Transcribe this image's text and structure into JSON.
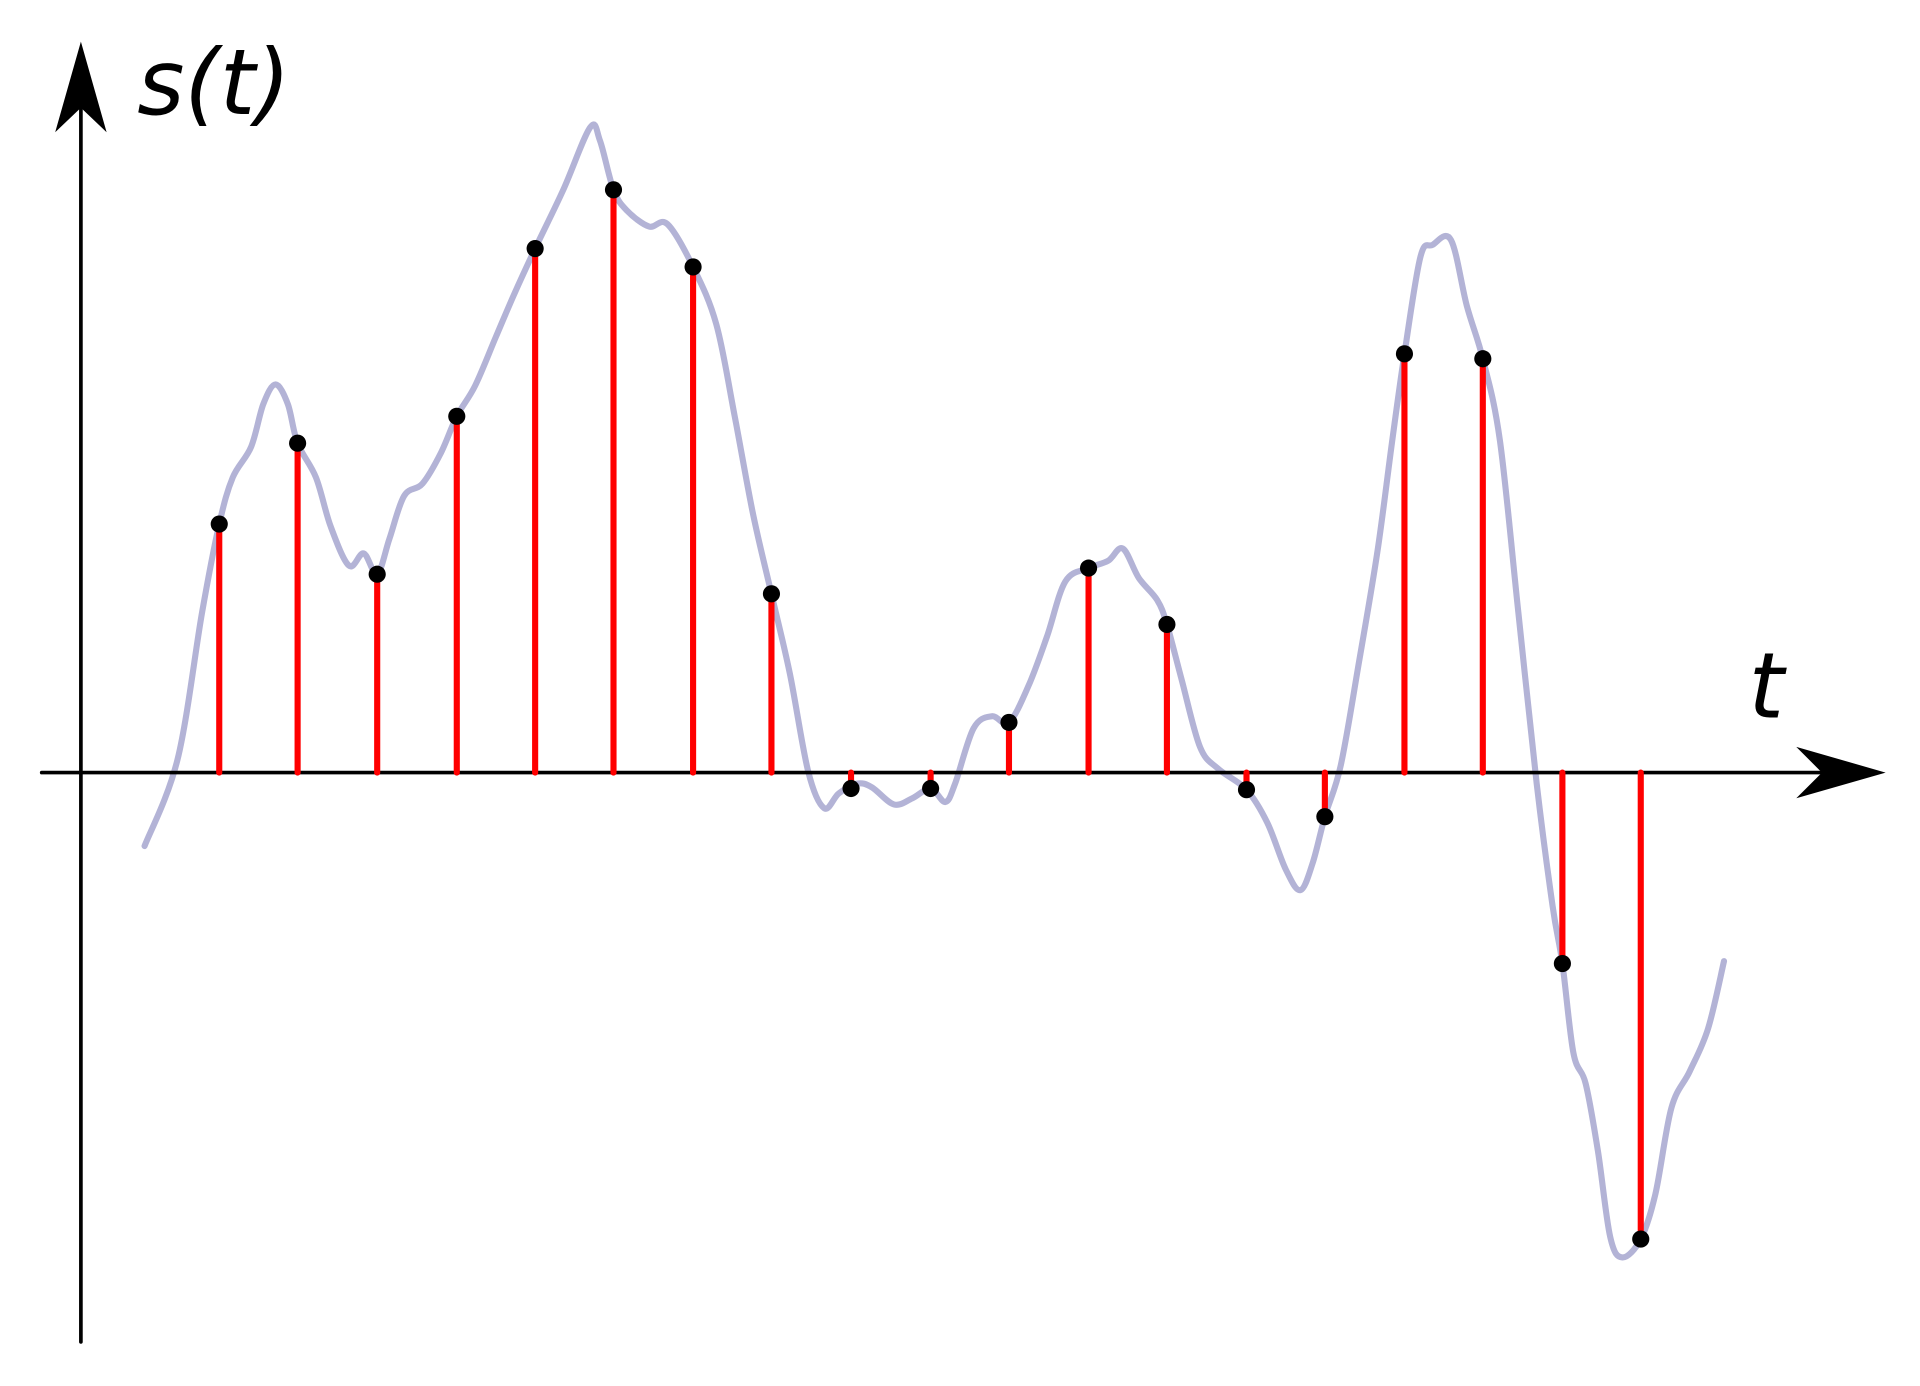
{
  "labels": {
    "y_axis": "s(t)",
    "x_axis": "t"
  },
  "colors": {
    "signal": "#b3b3d6",
    "stems": "#ff0000",
    "samples": "#000000",
    "axes": "#000000"
  },
  "chart_data": {
    "type": "stem",
    "grid": false,
    "signal": [
      [
        0.52,
        -0.6
      ],
      [
        0.79,
        0.11
      ],
      [
        0.99,
        1.31
      ],
      [
        1.13,
        2.03
      ],
      [
        1.24,
        2.41
      ],
      [
        1.39,
        2.66
      ],
      [
        1.49,
        3.01
      ],
      [
        1.59,
        3.17
      ],
      [
        1.69,
        3.01
      ],
      [
        1.77,
        2.69
      ],
      [
        1.92,
        2.41
      ],
      [
        2.04,
        2.01
      ],
      [
        2.19,
        1.69
      ],
      [
        2.31,
        1.79
      ],
      [
        2.42,
        1.62
      ],
      [
        2.52,
        1.91
      ],
      [
        2.64,
        2.26
      ],
      [
        2.79,
        2.36
      ],
      [
        2.94,
        2.61
      ],
      [
        3.07,
        2.91
      ],
      [
        3.22,
        3.16
      ],
      [
        3.39,
        3.56
      ],
      [
        3.54,
        3.91
      ],
      [
        3.71,
        4.28
      ],
      [
        3.94,
        4.76
      ],
      [
        4.16,
        5.27
      ],
      [
        4.24,
        5.16
      ],
      [
        4.35,
        4.76
      ],
      [
        4.46,
        4.59
      ],
      [
        4.64,
        4.46
      ],
      [
        4.79,
        4.48
      ],
      [
        5.0,
        4.13
      ],
      [
        5.19,
        3.66
      ],
      [
        5.34,
        2.91
      ],
      [
        5.49,
        2.11
      ],
      [
        5.64,
        1.46
      ],
      [
        5.79,
        0.81
      ],
      [
        5.94,
        0.01
      ],
      [
        6.07,
        -0.29
      ],
      [
        6.19,
        -0.17
      ],
      [
        6.34,
        -0.09
      ],
      [
        6.46,
        -0.12
      ],
      [
        6.64,
        -0.26
      ],
      [
        6.79,
        -0.21
      ],
      [
        6.94,
        -0.13
      ],
      [
        7.06,
        -0.24
      ],
      [
        7.14,
        -0.09
      ],
      [
        7.29,
        0.36
      ],
      [
        7.44,
        0.46
      ],
      [
        7.58,
        0.41
      ],
      [
        7.74,
        0.71
      ],
      [
        7.89,
        1.11
      ],
      [
        8.04,
        1.56
      ],
      [
        8.23,
        1.67
      ],
      [
        8.39,
        1.73
      ],
      [
        8.51,
        1.83
      ],
      [
        8.64,
        1.59
      ],
      [
        8.79,
        1.41
      ],
      [
        8.87,
        1.21
      ],
      [
        8.99,
        0.76
      ],
      [
        9.14,
        0.21
      ],
      [
        9.29,
        0.03
      ],
      [
        9.52,
        -0.14
      ],
      [
        9.69,
        -0.41
      ],
      [
        9.84,
        -0.79
      ],
      [
        9.96,
        -0.96
      ],
      [
        10.06,
        -0.74
      ],
      [
        10.16,
        -0.36
      ],
      [
        10.29,
        0.06
      ],
      [
        10.44,
        0.91
      ],
      [
        10.59,
        1.81
      ],
      [
        10.71,
        2.71
      ],
      [
        10.81,
        3.42
      ],
      [
        10.94,
        4.21
      ],
      [
        11.04,
        4.31
      ],
      [
        11.19,
        4.35
      ],
      [
        11.32,
        3.81
      ],
      [
        11.45,
        3.38
      ],
      [
        11.59,
        2.71
      ],
      [
        11.74,
        1.31
      ],
      [
        11.89,
        -0.09
      ],
      [
        12.02,
        -1.09
      ],
      [
        12.1,
        -1.56
      ],
      [
        12.19,
        -2.29
      ],
      [
        12.29,
        -2.54
      ],
      [
        12.39,
        -3.09
      ],
      [
        12.49,
        -3.79
      ],
      [
        12.59,
        -3.96
      ],
      [
        12.74,
        -3.81
      ],
      [
        12.86,
        -3.44
      ],
      [
        12.99,
        -2.74
      ],
      [
        13.14,
        -2.44
      ],
      [
        13.29,
        -2.09
      ],
      [
        13.42,
        -1.54
      ]
    ],
    "samples": [
      [
        1.13,
        2.03
      ],
      [
        1.77,
        2.69
      ],
      [
        2.42,
        1.62
      ],
      [
        3.07,
        2.91
      ],
      [
        3.71,
        4.28
      ],
      [
        4.35,
        4.76
      ],
      [
        5.0,
        4.13
      ],
      [
        5.64,
        1.46
      ],
      [
        6.29,
        -0.13
      ],
      [
        6.94,
        -0.13
      ],
      [
        7.58,
        0.41
      ],
      [
        8.23,
        1.67
      ],
      [
        8.87,
        1.21
      ],
      [
        9.52,
        -0.14
      ],
      [
        10.16,
        -0.36
      ],
      [
        10.81,
        3.42
      ],
      [
        11.45,
        3.38
      ],
      [
        12.1,
        -1.56
      ],
      [
        12.74,
        -3.81
      ]
    ]
  }
}
